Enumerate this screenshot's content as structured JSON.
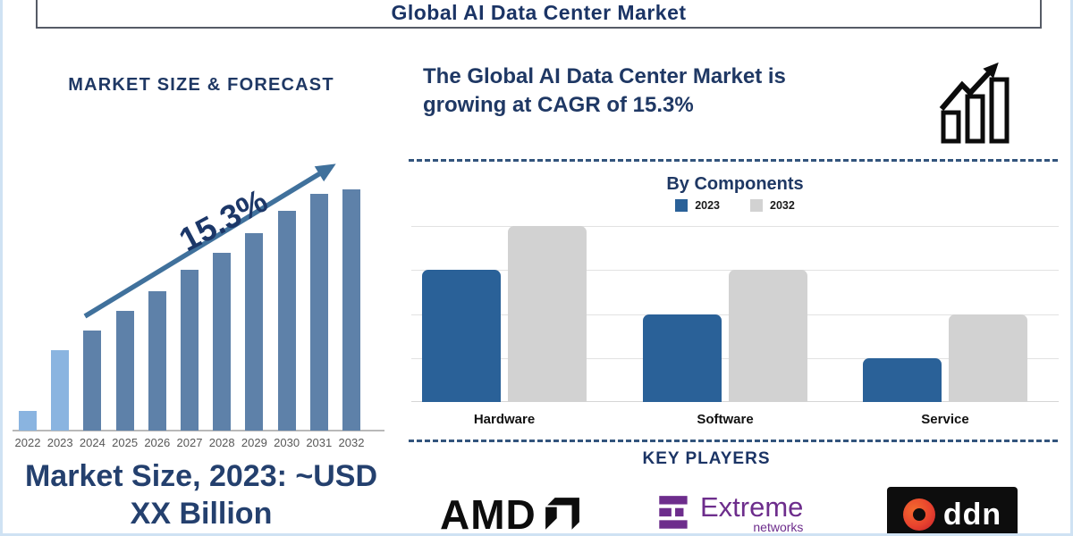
{
  "title": "Global AI Data Center Market",
  "colors": {
    "navy": "#1f3864",
    "forecast_bar": "#5e81a9",
    "forecast_highlight": "#8ab4e0",
    "arrow": "#40719c",
    "components_2023": "#2a6198",
    "components_2032": "#d2d2d2",
    "frame": "#cfe2f3",
    "dash": "#33557d",
    "amd_black": "#0d0d0d",
    "extreme_purple": "#6d2d8c",
    "ddn_red": "#e8432e"
  },
  "left_panel": {
    "heading": "MARKET SIZE & FORECAST",
    "growth_label": "15.3%",
    "footer_lines": [
      "Market Size, 2023: ~USD",
      "XX Billion"
    ]
  },
  "right_panel": {
    "note": "The Global AI Data Center Market is growing at CAGR of 15.3%",
    "growth_icon": "bar-chart-up-arrow-icon",
    "key_players_heading": "KEY PLAYERS",
    "players": [
      {
        "name": "AMD",
        "wordmark": "AMD"
      },
      {
        "name": "Extreme Networks",
        "wordmark": "Extreme",
        "sub": "networks"
      },
      {
        "name": "DDN",
        "wordmark": "ddn"
      }
    ]
  },
  "chart_data": [
    {
      "id": "market_size_forecast",
      "type": "bar",
      "title": "MARKET SIZE & FORECAST",
      "categories": [
        "2022",
        "2023",
        "2024",
        "2025",
        "2026",
        "2027",
        "2028",
        "2029",
        "2030",
        "2031",
        "2032"
      ],
      "values": [
        8,
        33,
        41,
        49,
        57,
        66,
        73,
        81,
        90,
        97,
        99
      ],
      "value_unit": "relative-height-percent",
      "highlight_indices": [
        0,
        1
      ],
      "bar_color": "#5e81a9",
      "highlight_color": "#8ab4e0",
      "annotation": "15.3%",
      "xlabel": "",
      "ylabel": "",
      "ylim": [
        0,
        100
      ],
      "grid": false,
      "legend": false,
      "footer": "Market Size, 2023: ~USD XX Billion"
    },
    {
      "id": "by_components",
      "type": "bar",
      "title": "By Components",
      "categories": [
        "Hardware",
        "Software",
        "Service"
      ],
      "series": [
        {
          "name": "2023",
          "color": "#2a6198",
          "values": [
            75,
            50,
            25
          ]
        },
        {
          "name": "2032",
          "color": "#d2d2d2",
          "values": [
            100,
            75,
            50
          ]
        }
      ],
      "value_unit": "relative-height-percent",
      "ylim": [
        0,
        100
      ],
      "grid": true,
      "legend_position": "top"
    }
  ]
}
